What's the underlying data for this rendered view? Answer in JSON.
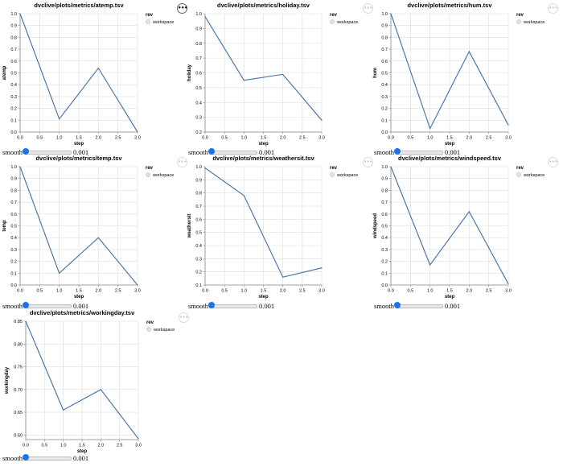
{
  "chart_data": [
    {
      "type": "line",
      "title": "dvclive/plots/metrics/atemp.tsv",
      "xlabel": "step",
      "ylabel": "atemp",
      "x": [
        0,
        1,
        2,
        3
      ],
      "xlim": [
        0,
        3.0
      ],
      "xticks": [
        "0.0",
        "0.5",
        "1.0",
        "1.5",
        "2.0",
        "2.5",
        "3.0"
      ],
      "ylim": [
        0,
        1.0
      ],
      "yticks": [
        "0.0",
        "0.1",
        "0.2",
        "0.3",
        "0.4",
        "0.5",
        "0.6",
        "0.7",
        "0.8",
        "0.9",
        "1.0"
      ],
      "series": [
        {
          "name": "workspace",
          "values": [
            1.0,
            0.11,
            0.54,
            0.0
          ]
        }
      ],
      "grid": true,
      "legend_title": "rev",
      "legend_position": "right"
    },
    {
      "type": "line",
      "title": "dvclive/plots/metrics/holiday.tsv",
      "xlabel": "step",
      "ylabel": "holiday",
      "x": [
        0,
        1,
        2,
        3
      ],
      "xlim": [
        0,
        3.0
      ],
      "xticks": [
        "0.0",
        "0.5",
        "1.0",
        "1.5",
        "2.0",
        "2.5",
        "3.0"
      ],
      "ylim": [
        0.2,
        1.0
      ],
      "yticks": [
        "0.2",
        "0.3",
        "0.4",
        "0.5",
        "0.6",
        "0.7",
        "0.8",
        "0.9",
        "1.0"
      ],
      "series": [
        {
          "name": "workspace",
          "values": [
            0.98,
            0.55,
            0.59,
            0.28
          ]
        }
      ],
      "grid": true,
      "legend_title": "rev",
      "legend_position": "right"
    },
    {
      "type": "line",
      "title": "dvclive/plots/metrics/hum.tsv",
      "xlabel": "step",
      "ylabel": "hum",
      "x": [
        0,
        1,
        2,
        3
      ],
      "xlim": [
        0,
        3.0
      ],
      "xticks": [
        "0.0",
        "0.5",
        "1.0",
        "1.5",
        "2.0",
        "2.5",
        "3.0"
      ],
      "ylim": [
        0,
        1.0
      ],
      "yticks": [
        "0.0",
        "0.1",
        "0.2",
        "0.3",
        "0.4",
        "0.5",
        "0.6",
        "0.7",
        "0.8",
        "0.9",
        "1.0"
      ],
      "series": [
        {
          "name": "workspace",
          "values": [
            1.0,
            0.03,
            0.68,
            0.06
          ]
        }
      ],
      "grid": true,
      "legend_title": "rev",
      "legend_position": "right"
    },
    {
      "type": "line",
      "title": "dvclive/plots/metrics/temp.tsv",
      "xlabel": "step",
      "ylabel": "temp",
      "x": [
        0,
        1,
        2,
        3
      ],
      "xlim": [
        0,
        3.0
      ],
      "xticks": [
        "0.0",
        "0.5",
        "1.0",
        "1.5",
        "2.0",
        "2.5",
        "3.0"
      ],
      "ylim": [
        0,
        1.0
      ],
      "yticks": [
        "0.0",
        "0.1",
        "0.2",
        "0.3",
        "0.4",
        "0.5",
        "0.6",
        "0.7",
        "0.8",
        "0.9",
        "1.0"
      ],
      "series": [
        {
          "name": "workspace",
          "values": [
            1.0,
            0.1,
            0.4,
            0.0
          ]
        }
      ],
      "grid": true,
      "legend_title": "rev",
      "legend_position": "right"
    },
    {
      "type": "line",
      "title": "dvclive/plots/metrics/weathersit.tsv",
      "xlabel": "step",
      "ylabel": "weathersit",
      "x": [
        0,
        1,
        2,
        3
      ],
      "xlim": [
        0,
        3.0
      ],
      "xticks": [
        "0.0",
        "0.5",
        "1.0",
        "1.5",
        "2.0",
        "2.5",
        "3.0"
      ],
      "ylim": [
        0.1,
        1.0
      ],
      "yticks": [
        "0.1",
        "0.2",
        "0.3",
        "0.4",
        "0.5",
        "0.6",
        "0.7",
        "0.8",
        "0.9",
        "1.0"
      ],
      "series": [
        {
          "name": "workspace",
          "values": [
            0.99,
            0.78,
            0.16,
            0.23
          ]
        }
      ],
      "grid": true,
      "legend_title": "rev",
      "legend_position": "right"
    },
    {
      "type": "line",
      "title": "dvclive/plots/metrics/windspeed.tsv",
      "xlabel": "step",
      "ylabel": "windspeed",
      "x": [
        0,
        1,
        2,
        3
      ],
      "xlim": [
        0,
        3.0
      ],
      "xticks": [
        "0.0",
        "0.5",
        "1.0",
        "1.5",
        "2.0",
        "2.5",
        "3.0"
      ],
      "ylim": [
        0,
        1.0
      ],
      "yticks": [
        "0.0",
        "0.1",
        "0.2",
        "0.3",
        "0.4",
        "0.5",
        "0.6",
        "0.7",
        "0.8",
        "0.9",
        "1.0"
      ],
      "series": [
        {
          "name": "workspace",
          "values": [
            1.0,
            0.17,
            0.62,
            0.01
          ]
        }
      ],
      "grid": true,
      "legend_title": "rev",
      "legend_position": "right"
    },
    {
      "type": "line",
      "title": "dvclive/plots/metrics/workingday.tsv",
      "xlabel": "step",
      "ylabel": "workingday",
      "x": [
        0,
        1,
        2,
        3
      ],
      "xlim": [
        0,
        3.0
      ],
      "xticks": [
        "0.0",
        "0.5",
        "1.0",
        "1.5",
        "2.0",
        "2.5",
        "3.0"
      ],
      "ylim": [
        0.59,
        0.85
      ],
      "yticks": [
        "0.60",
        "0.65",
        "0.70",
        "0.75",
        "0.80",
        "0.85"
      ],
      "series": [
        {
          "name": "workspace",
          "values": [
            0.85,
            0.655,
            0.7,
            0.592
          ]
        }
      ],
      "grid": true,
      "legend_title": "rev",
      "legend_position": "right"
    }
  ],
  "smooth": {
    "label": "smooth",
    "value": "0.001"
  },
  "menu_icon": "more-horizontal-icon",
  "menu_glyph": "•••",
  "colors": {
    "series": "#4c78a8",
    "legend_swatch": "#e0e0e0",
    "slider_thumb": "#1a73e8"
  }
}
